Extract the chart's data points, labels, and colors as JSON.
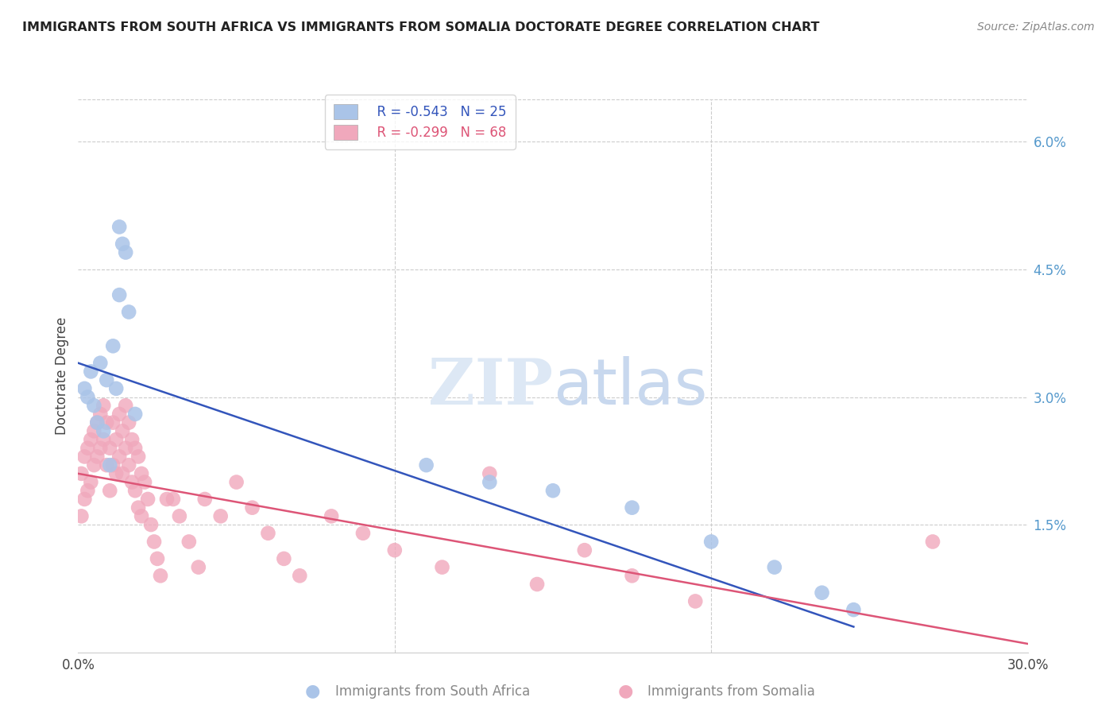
{
  "title": "IMMIGRANTS FROM SOUTH AFRICA VS IMMIGRANTS FROM SOMALIA DOCTORATE DEGREE CORRELATION CHART",
  "source": "Source: ZipAtlas.com",
  "ylabel": "Doctorate Degree",
  "right_yticks": [
    "6.0%",
    "4.5%",
    "3.0%",
    "1.5%"
  ],
  "right_ytick_vals": [
    0.06,
    0.045,
    0.03,
    0.015
  ],
  "legend_blue_r": "R = -0.543",
  "legend_blue_n": "N = 25",
  "legend_pink_r": "R = -0.299",
  "legend_pink_n": "N = 68",
  "blue_color": "#aac4e8",
  "pink_color": "#f0a8bc",
  "blue_line_color": "#3355bb",
  "pink_line_color": "#dd5577",
  "background_color": "#ffffff",
  "grid_color": "#cccccc",
  "xlim": [
    0.0,
    0.3
  ],
  "ylim": [
    0.0,
    0.065
  ],
  "blue_trendline_x": [
    0.0,
    0.245
  ],
  "blue_trendline_y": [
    0.034,
    0.003
  ],
  "pink_trendline_x": [
    0.0,
    0.3
  ],
  "pink_trendline_y": [
    0.021,
    0.001
  ],
  "blue_x": [
    0.002,
    0.003,
    0.004,
    0.005,
    0.006,
    0.007,
    0.008,
    0.009,
    0.01,
    0.011,
    0.012,
    0.013,
    0.014,
    0.016,
    0.018,
    0.013,
    0.015,
    0.11,
    0.13,
    0.15,
    0.175,
    0.2,
    0.22,
    0.235,
    0.245
  ],
  "blue_y": [
    0.031,
    0.03,
    0.033,
    0.029,
    0.027,
    0.034,
    0.026,
    0.032,
    0.022,
    0.036,
    0.031,
    0.05,
    0.048,
    0.04,
    0.028,
    0.042,
    0.047,
    0.022,
    0.02,
    0.019,
    0.017,
    0.013,
    0.01,
    0.007,
    0.005
  ],
  "pink_x": [
    0.001,
    0.001,
    0.002,
    0.002,
    0.003,
    0.003,
    0.004,
    0.004,
    0.005,
    0.005,
    0.006,
    0.006,
    0.007,
    0.007,
    0.008,
    0.008,
    0.009,
    0.009,
    0.01,
    0.01,
    0.011,
    0.011,
    0.012,
    0.012,
    0.013,
    0.013,
    0.014,
    0.014,
    0.015,
    0.015,
    0.016,
    0.016,
    0.017,
    0.017,
    0.018,
    0.018,
    0.019,
    0.019,
    0.02,
    0.02,
    0.021,
    0.022,
    0.023,
    0.024,
    0.025,
    0.026,
    0.028,
    0.03,
    0.032,
    0.035,
    0.038,
    0.04,
    0.045,
    0.05,
    0.055,
    0.06,
    0.065,
    0.07,
    0.08,
    0.09,
    0.1,
    0.115,
    0.13,
    0.145,
    0.16,
    0.175,
    0.195,
    0.27
  ],
  "pink_y": [
    0.021,
    0.016,
    0.023,
    0.018,
    0.024,
    0.019,
    0.025,
    0.02,
    0.026,
    0.022,
    0.027,
    0.023,
    0.028,
    0.024,
    0.029,
    0.025,
    0.027,
    0.022,
    0.024,
    0.019,
    0.027,
    0.022,
    0.025,
    0.021,
    0.028,
    0.023,
    0.026,
    0.021,
    0.029,
    0.024,
    0.027,
    0.022,
    0.025,
    0.02,
    0.024,
    0.019,
    0.023,
    0.017,
    0.021,
    0.016,
    0.02,
    0.018,
    0.015,
    0.013,
    0.011,
    0.009,
    0.018,
    0.018,
    0.016,
    0.013,
    0.01,
    0.018,
    0.016,
    0.02,
    0.017,
    0.014,
    0.011,
    0.009,
    0.016,
    0.014,
    0.012,
    0.01,
    0.021,
    0.008,
    0.012,
    0.009,
    0.006,
    0.013
  ]
}
